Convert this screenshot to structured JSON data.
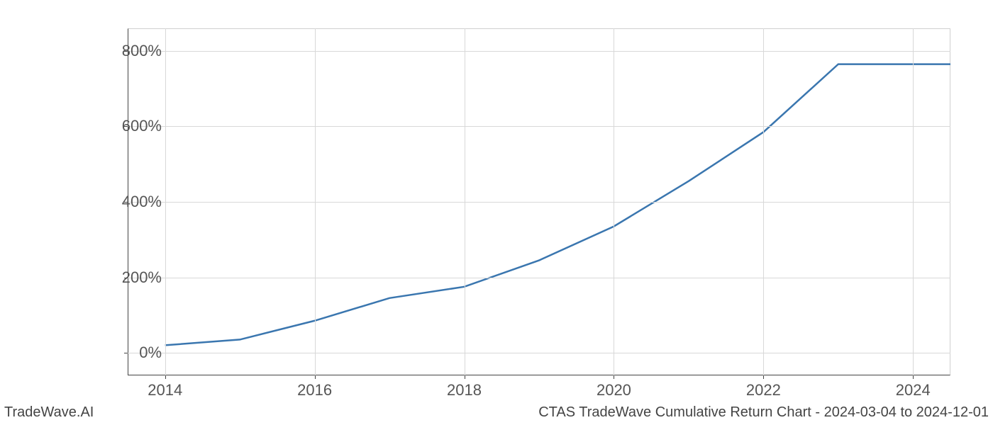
{
  "chart": {
    "type": "line",
    "background_color": "#ffffff",
    "grid_color": "#d8d8d8",
    "axis_color": "#444444",
    "tick_font_size": 22,
    "tick_color": "#555555",
    "line_color": "#3a76af",
    "line_width": 2.5,
    "xlim": [
      2013.5,
      2024.5
    ],
    "ylim": [
      -60,
      860
    ],
    "x_ticks": [
      2014,
      2016,
      2018,
      2020,
      2022,
      2024
    ],
    "x_tick_labels": [
      "2014",
      "2016",
      "2018",
      "2020",
      "2022",
      "2024"
    ],
    "y_ticks": [
      0,
      200,
      400,
      600,
      800
    ],
    "y_tick_labels": [
      "0%",
      "200%",
      "400%",
      "600%",
      "800%"
    ],
    "data_x": [
      2014,
      2015,
      2016,
      2017,
      2018,
      2019,
      2020,
      2021,
      2022,
      2023,
      2024,
      2024.5
    ],
    "data_y": [
      20,
      35,
      85,
      145,
      175,
      245,
      335,
      455,
      585,
      765,
      765,
      765
    ]
  },
  "footer": {
    "left": "TradeWave.AI",
    "right": "CTAS TradeWave Cumulative Return Chart - 2024-03-04 to 2024-12-01",
    "font_size": 20,
    "color": "#444444"
  }
}
